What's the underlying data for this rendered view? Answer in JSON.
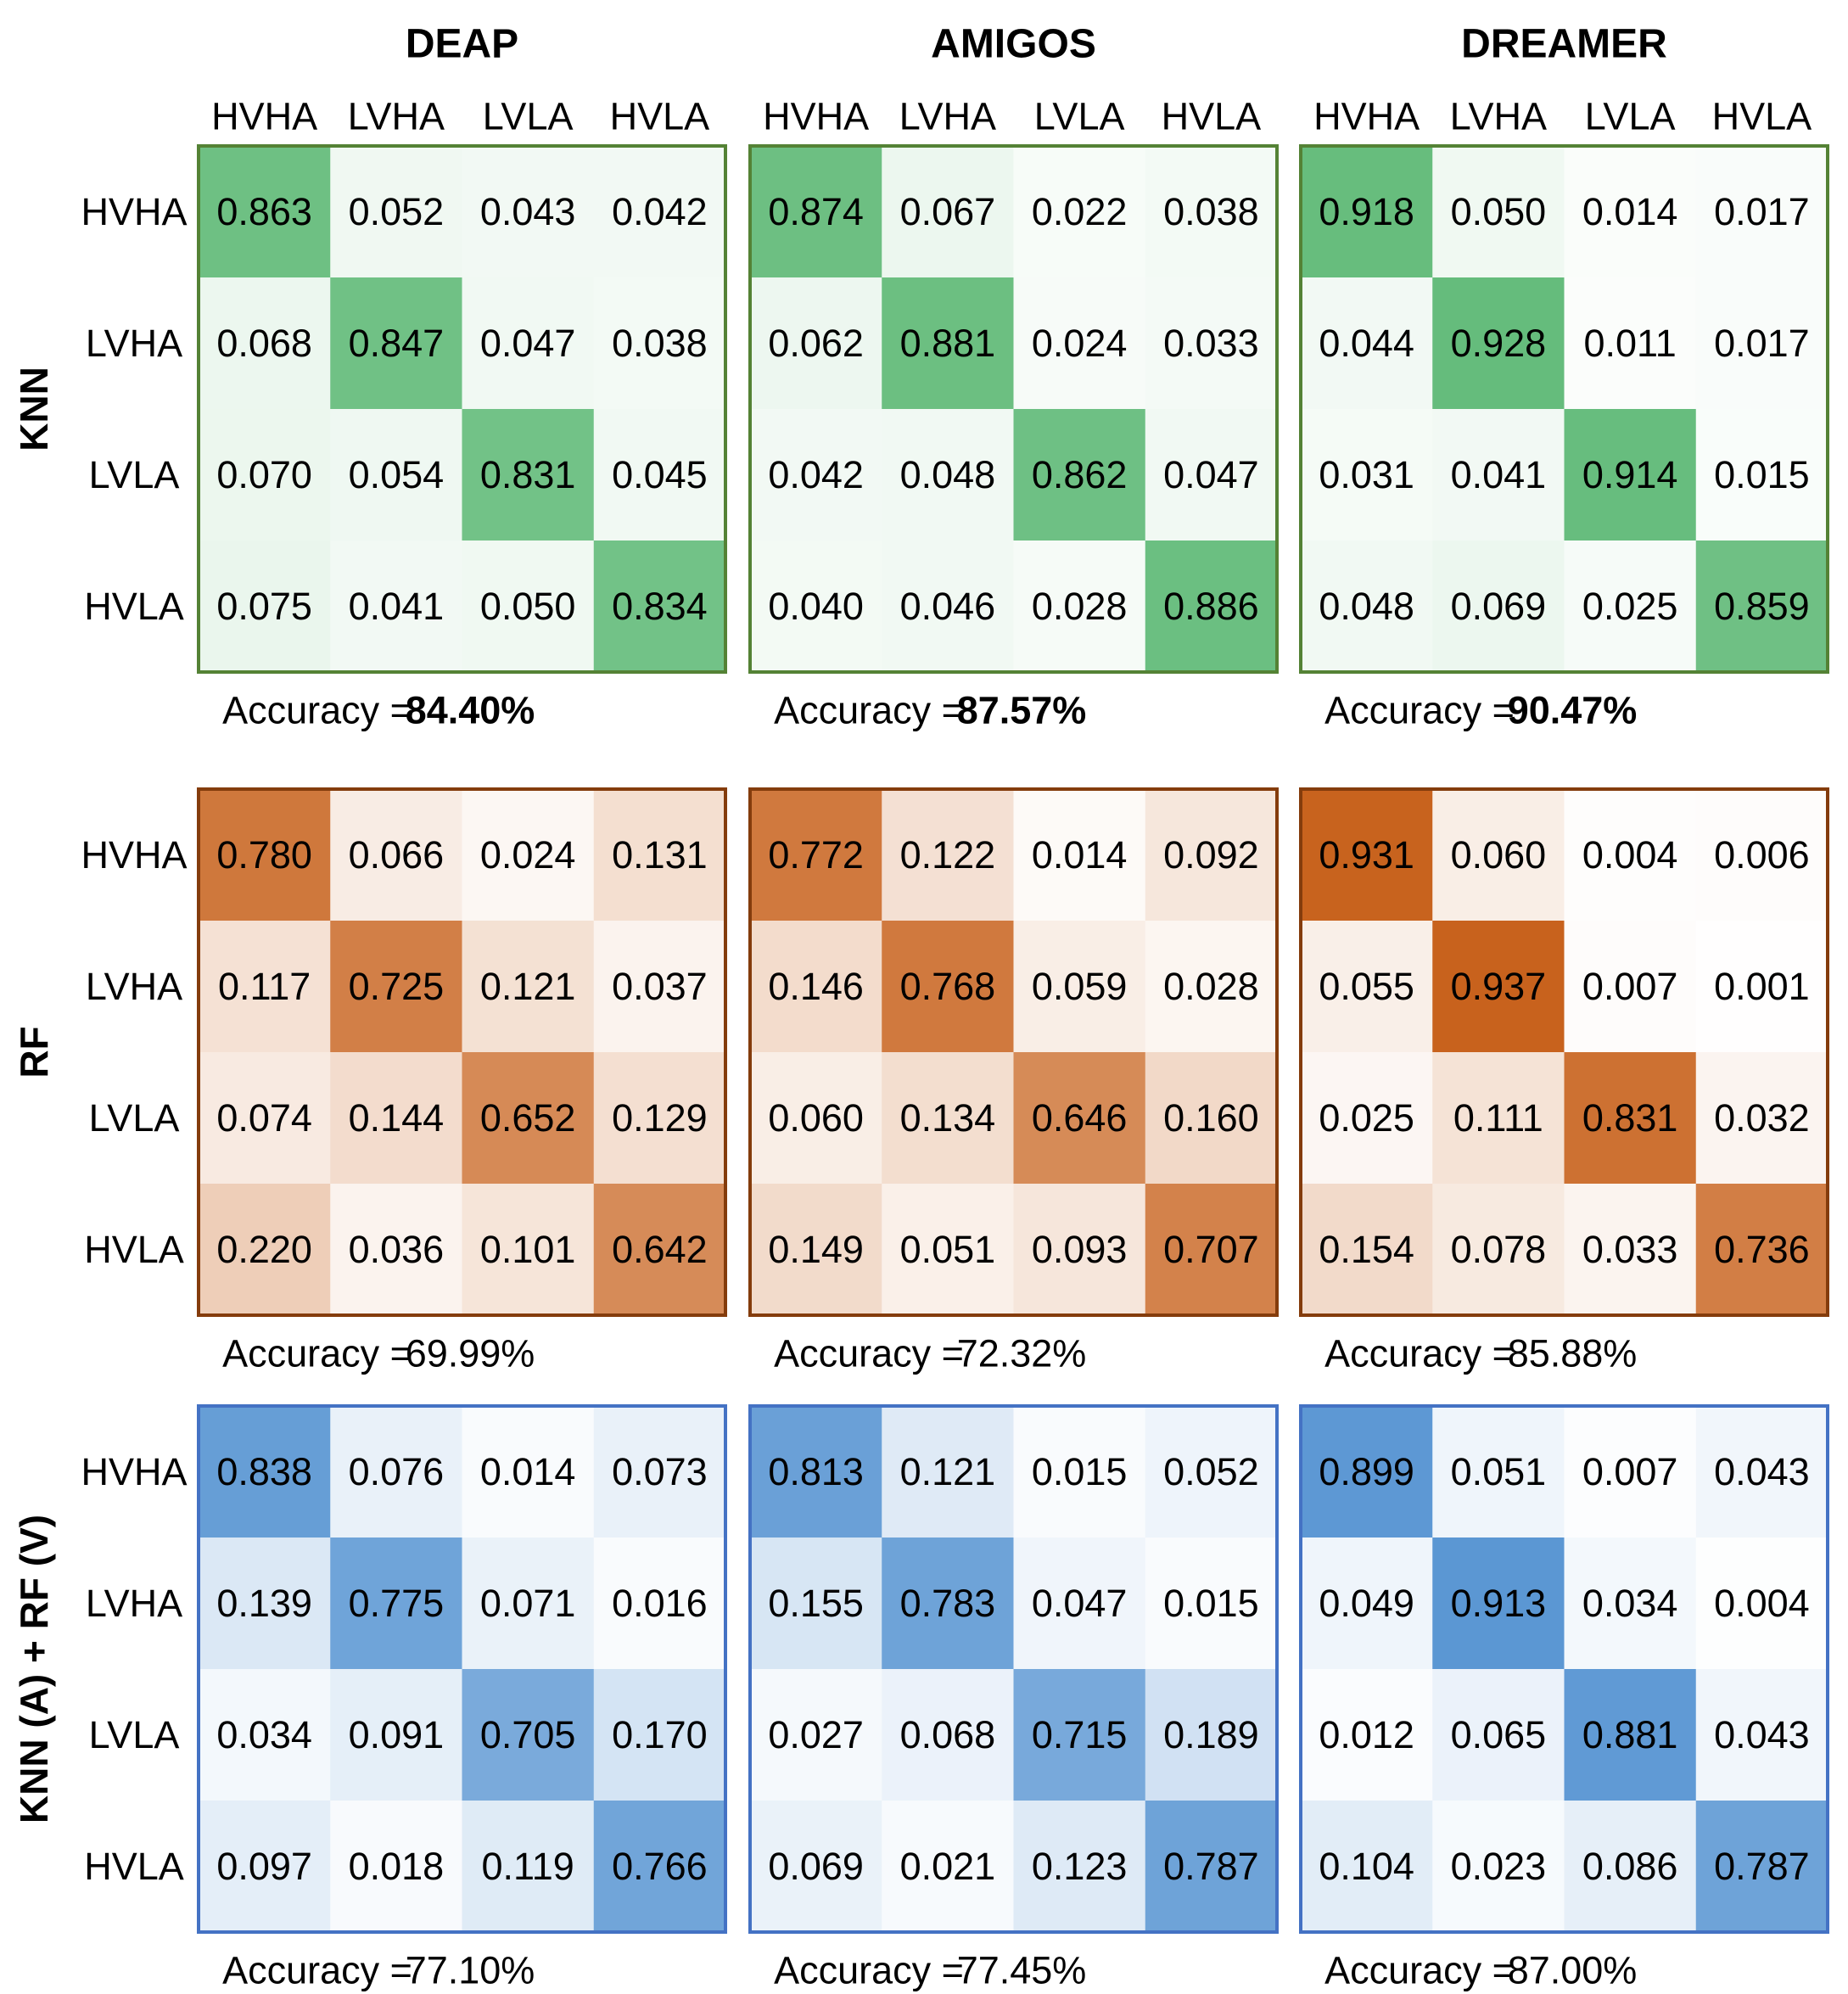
{
  "chart_data": {
    "type": "heatmap",
    "title": "",
    "classes": [
      "HVHA",
      "LVHA",
      "LVLA",
      "HVLA"
    ],
    "datasets": [
      "DEAP",
      "AMIGOS",
      "DREAMER"
    ],
    "methods": [
      {
        "name": "KNN",
        "color": "#5cb874",
        "border_color": "#548235",
        "accuracy_bold": true,
        "panels": [
          {
            "dataset": "DEAP",
            "accuracy_label": "Accuracy =",
            "accuracy": "84.40%",
            "matrix": [
              [
                0.863,
                0.052,
                0.043,
                0.042
              ],
              [
                0.068,
                0.847,
                0.047,
                0.038
              ],
              [
                0.07,
                0.054,
                0.831,
                0.045
              ],
              [
                0.075,
                0.041,
                0.05,
                0.834
              ]
            ]
          },
          {
            "dataset": "AMIGOS",
            "accuracy_label": "Accuracy =",
            "accuracy": "87.57%",
            "matrix": [
              [
                0.874,
                0.067,
                0.022,
                0.038
              ],
              [
                0.062,
                0.881,
                0.024,
                0.033
              ],
              [
                0.042,
                0.048,
                0.862,
                0.047
              ],
              [
                0.04,
                0.046,
                0.028,
                0.886
              ]
            ]
          },
          {
            "dataset": "DREAMER",
            "accuracy_label": "Accuracy =",
            "accuracy": "90.47%",
            "matrix": [
              [
                0.918,
                0.05,
                0.014,
                0.017
              ],
              [
                0.044,
                0.928,
                0.011,
                0.017
              ],
              [
                0.031,
                0.041,
                0.914,
                0.015
              ],
              [
                0.048,
                0.069,
                0.025,
                0.859
              ]
            ]
          }
        ]
      },
      {
        "name": "RF",
        "color": "#c55a11",
        "border_color": "#843c0c",
        "accuracy_bold": false,
        "panels": [
          {
            "dataset": "DEAP",
            "accuracy_label": "Accuracy =",
            "accuracy": "69.99%",
            "matrix": [
              [
                0.78,
                0.066,
                0.024,
                0.131
              ],
              [
                0.117,
                0.725,
                0.121,
                0.037
              ],
              [
                0.074,
                0.144,
                0.652,
                0.129
              ],
              [
                0.22,
                0.036,
                0.101,
                0.642
              ]
            ]
          },
          {
            "dataset": "AMIGOS",
            "accuracy_label": "Accuracy =",
            "accuracy": "72.32%",
            "matrix": [
              [
                0.772,
                0.122,
                0.014,
                0.092
              ],
              [
                0.146,
                0.768,
                0.059,
                0.028
              ],
              [
                0.06,
                0.134,
                0.646,
                0.16
              ],
              [
                0.149,
                0.051,
                0.093,
                0.707
              ]
            ]
          },
          {
            "dataset": "DREAMER",
            "accuracy_label": "Accuracy =",
            "accuracy": "85.88%",
            "matrix": [
              [
                0.931,
                0.06,
                0.004,
                0.006
              ],
              [
                0.055,
                0.937,
                0.007,
                0.001
              ],
              [
                0.025,
                0.111,
                0.831,
                0.032
              ],
              [
                0.154,
                0.078,
                0.033,
                0.736
              ]
            ]
          }
        ]
      },
      {
        "name": "KNN (A) + RF (V)",
        "color": "#4f8fd0",
        "border_color": "#4472c4",
        "accuracy_bold": false,
        "panels": [
          {
            "dataset": "DEAP",
            "accuracy_label": "Accuracy =",
            "accuracy": "77.10%",
            "matrix": [
              [
                0.838,
                0.076,
                0.014,
                0.073
              ],
              [
                0.139,
                0.775,
                0.071,
                0.016
              ],
              [
                0.034,
                0.091,
                0.705,
                0.17
              ],
              [
                0.097,
                0.018,
                0.119,
                0.766
              ]
            ]
          },
          {
            "dataset": "AMIGOS",
            "accuracy_label": "Accuracy =",
            "accuracy": "77.45%",
            "matrix": [
              [
                0.813,
                0.121,
                0.015,
                0.052
              ],
              [
                0.155,
                0.783,
                0.047,
                0.015
              ],
              [
                0.027,
                0.068,
                0.715,
                0.189
              ],
              [
                0.069,
                0.021,
                0.123,
                0.787
              ]
            ]
          },
          {
            "dataset": "DREAMER",
            "accuracy_label": "Accuracy =",
            "accuracy": "87.00%",
            "matrix": [
              [
                0.899,
                0.051,
                0.007,
                0.043
              ],
              [
                0.049,
                0.913,
                0.034,
                0.004
              ],
              [
                0.012,
                0.065,
                0.881,
                0.043
              ],
              [
                0.104,
                0.023,
                0.086,
                0.787
              ]
            ]
          }
        ]
      }
    ]
  }
}
